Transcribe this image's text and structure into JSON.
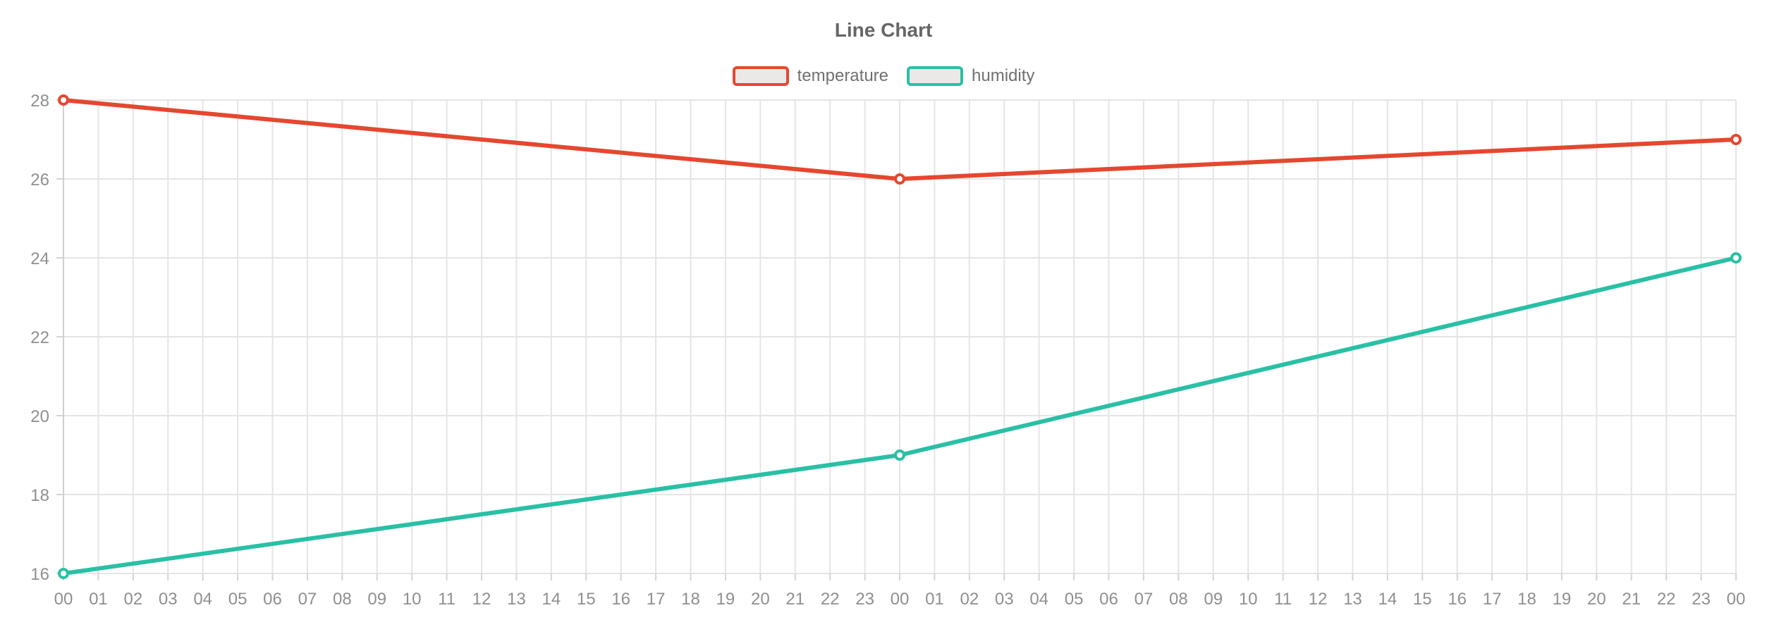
{
  "title": "Line Chart",
  "legend": {
    "items": [
      {
        "label": "temperature",
        "color": "#e5472f"
      },
      {
        "label": "humidity",
        "color": "#29c0a5"
      }
    ]
  },
  "chart_data": {
    "type": "line",
    "title": "Line Chart",
    "x_labels": [
      "00",
      "01",
      "02",
      "03",
      "04",
      "05",
      "06",
      "07",
      "08",
      "09",
      "10",
      "11",
      "12",
      "13",
      "14",
      "15",
      "16",
      "17",
      "18",
      "19",
      "20",
      "21",
      "22",
      "23",
      "00",
      "01",
      "02",
      "03",
      "04",
      "05",
      "06",
      "07",
      "08",
      "09",
      "10",
      "11",
      "12",
      "13",
      "14",
      "15",
      "16",
      "17",
      "18",
      "19",
      "20",
      "21",
      "22",
      "23",
      "00"
    ],
    "y_ticks": [
      16,
      18,
      20,
      22,
      24,
      26,
      28
    ],
    "ylim": [
      16,
      28
    ],
    "grid": true,
    "legend_position": "top",
    "series": [
      {
        "name": "temperature",
        "color": "#e5472f",
        "points": [
          {
            "x_index": 0,
            "x_label": "00",
            "value": 28
          },
          {
            "x_index": 24,
            "x_label": "00",
            "value": 26
          },
          {
            "x_index": 48,
            "x_label": "00",
            "value": 27
          }
        ]
      },
      {
        "name": "humidity",
        "color": "#29c0a5",
        "points": [
          {
            "x_index": 0,
            "x_label": "00",
            "value": 16
          },
          {
            "x_index": 24,
            "x_label": "00",
            "value": 19
          },
          {
            "x_index": 48,
            "x_label": "00",
            "value": 24
          }
        ]
      }
    ],
    "style": {
      "grid_color": "#e5e5e5",
      "axis_line_color": "#cfcfcf",
      "tick_color": "#d4d4d4",
      "axis_label_color": "#8f8f8f",
      "symbol_fill": "#ffffff"
    }
  }
}
